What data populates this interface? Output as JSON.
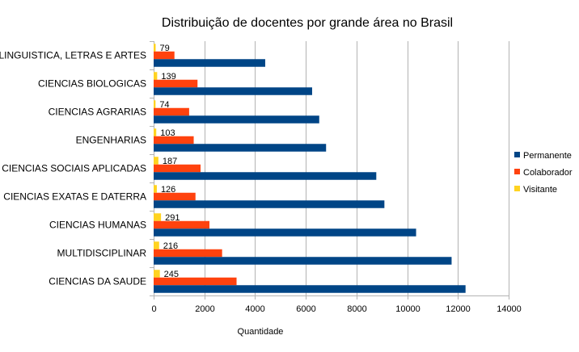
{
  "chart_data": {
    "type": "bar",
    "orientation": "horizontal",
    "title": "Distribuição de docentes por grande área no Brasil",
    "xlabel": "Quantidade",
    "ylabel": "",
    "xlim": [
      0,
      14000
    ],
    "x_ticks": [
      "0",
      "2000",
      "4000",
      "6000",
      "8000",
      "10000",
      "12000",
      "14000"
    ],
    "grid": true,
    "legend_position": "right",
    "categories": [
      "LINGUISTICA, LETRAS E ARTES",
      "CIENCIAS BIOLOGICAS",
      "CIENCIAS AGRARIAS",
      "ENGENHARIAS",
      "CIENCIAS SOCIAIS APLICADAS",
      "CIENCIAS EXATAS E DATERRA",
      "CIENCIAS HUMANAS",
      "MULTIDISCIPLINAR",
      "CIENCIAS DA SAUDE"
    ],
    "series": [
      {
        "name": "Permanente",
        "color": "#004586",
        "values": [
          4400,
          6250,
          6530,
          6800,
          8780,
          9100,
          10350,
          11750,
          12300
        ]
      },
      {
        "name": "Colaborador",
        "color": "#ff420e",
        "values": [
          820,
          1730,
          1400,
          1580,
          1850,
          1650,
          2200,
          2700,
          3270
        ]
      },
      {
        "name": "Visitante",
        "color": "#ffd320",
        "values": [
          79,
          139,
          74,
          103,
          187,
          126,
          291,
          216,
          245
        ],
        "labels": [
          "79",
          "139",
          "74",
          "103",
          "187",
          "126",
          "291",
          "216",
          "245"
        ]
      }
    ]
  }
}
